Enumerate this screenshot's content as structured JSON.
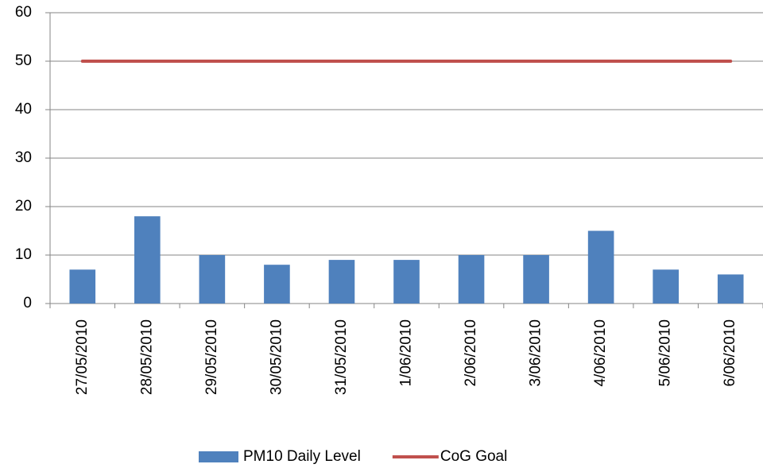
{
  "chart_data": {
    "type": "bar",
    "categories": [
      "27/05/2010",
      "28/05/2010",
      "29/05/2010",
      "30/05/2010",
      "31/05/2010",
      "1/06/2010",
      "2/06/2010",
      "3/06/2010",
      "4/06/2010",
      "5/06/2010",
      "6/06/2010"
    ],
    "series": [
      {
        "name": "PM10 Daily Level",
        "type": "bar",
        "color": "#4f81bd",
        "values": [
          7,
          18,
          10,
          8,
          9,
          9,
          10,
          10,
          15,
          7,
          6
        ]
      },
      {
        "name": "CoG Goal",
        "type": "line",
        "color": "#c0504d",
        "values": [
          50,
          50,
          50,
          50,
          50,
          50,
          50,
          50,
          50,
          50,
          50
        ]
      }
    ],
    "ylim": [
      0,
      60
    ],
    "yticks": [
      0,
      10,
      20,
      30,
      40,
      50,
      60
    ],
    "grid": true,
    "legend": "bottom"
  }
}
